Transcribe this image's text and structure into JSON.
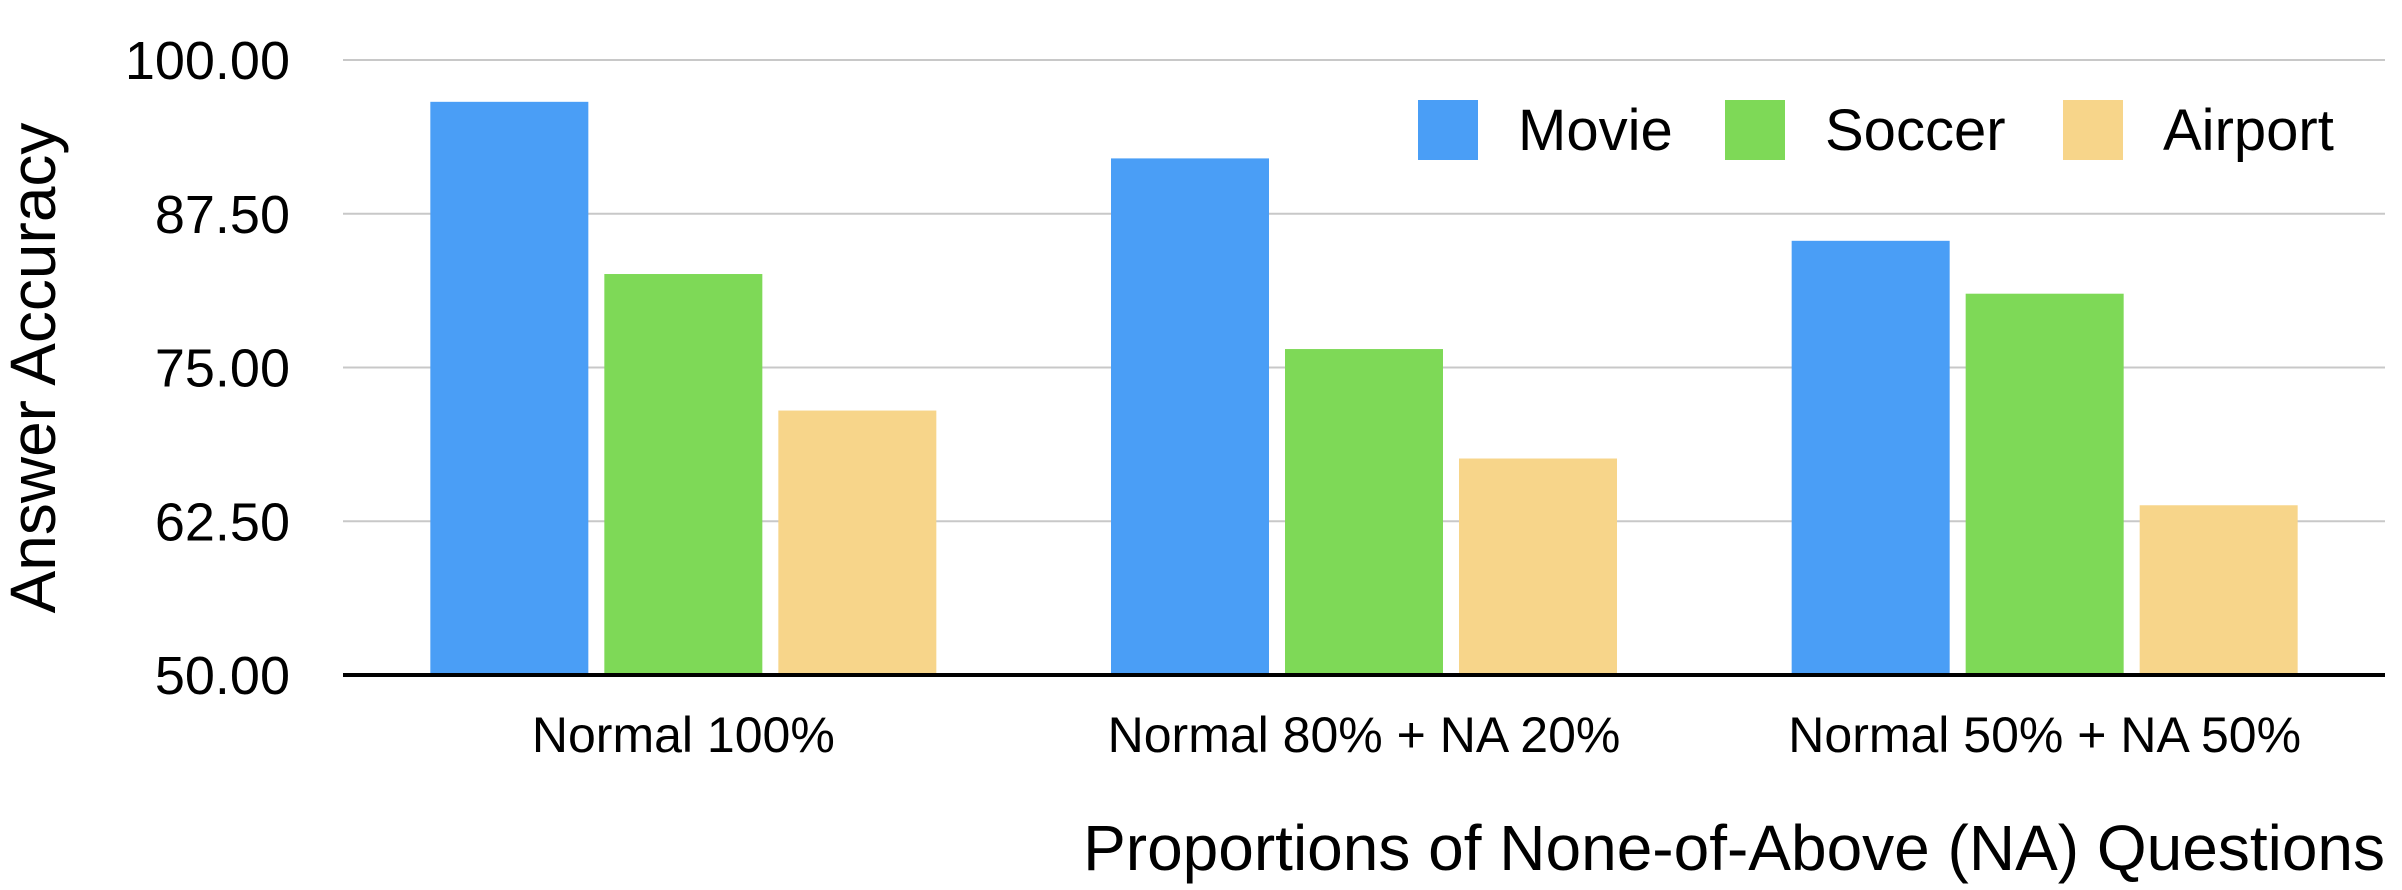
{
  "chart_data": {
    "type": "bar",
    "title": "",
    "xlabel": "Proportions of None-of-Above (NA) Questions",
    "ylabel": "Answer Accuracy",
    "ylim": [
      50,
      100
    ],
    "yticks": [
      "100.00",
      "87.50",
      "75.00",
      "62.50",
      "50.00"
    ],
    "categories": [
      "Normal 100%",
      "Normal 80% + NA 20%",
      "Normal 50% + NA 50%"
    ],
    "series": [
      {
        "name": "Movie",
        "color": "#4A9EF6",
        "values": [
          96.6,
          92.0,
          85.3
        ]
      },
      {
        "name": "Soccer",
        "color": "#7ED957",
        "values": [
          82.6,
          76.5,
          81.0
        ]
      },
      {
        "name": "Airport",
        "color": "#F7D58A",
        "values": [
          71.5,
          67.6,
          63.8
        ]
      }
    ],
    "grid": true,
    "legend_position": "top-right"
  }
}
